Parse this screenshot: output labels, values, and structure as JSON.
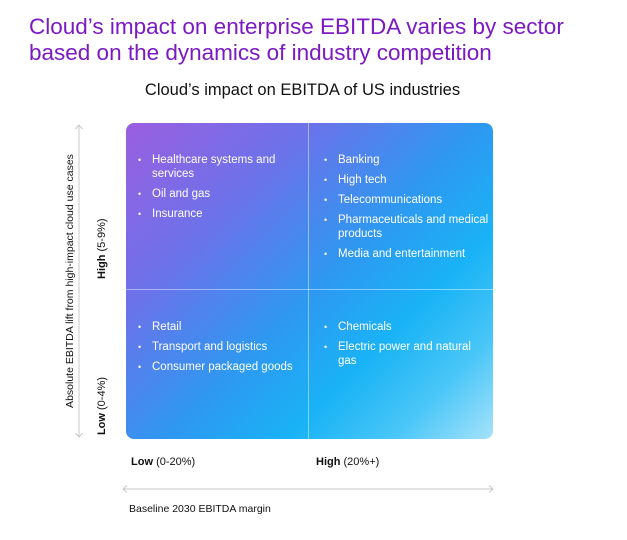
{
  "headline": {
    "line1": "Cloud’s impact on enterprise EBITDA varies by sector",
    "line2": "based on the dynamics of industry competition"
  },
  "chart_title": "Cloud’s impact on EBITDA of US industries",
  "y_axis": {
    "label": "Absolute EBITDA lift from high-impact cloud use cases",
    "high": {
      "level": "High",
      "range": "(5-9%)"
    },
    "low": {
      "level": "Low",
      "range": "(0-4%)"
    }
  },
  "x_axis": {
    "label": "Baseline 2030 EBITDA margin",
    "low": {
      "level": "Low",
      "range": "(0-20%)"
    },
    "high": {
      "level": "High",
      "range": "(20%+)"
    }
  },
  "quadrants": {
    "top_left": [
      "Healthcare systems and services",
      "Oil and gas",
      "Insurance"
    ],
    "top_right": [
      "Banking",
      "High tech",
      "Telecommunications",
      "Pharmaceuticals and medical products",
      "Media and entertainment"
    ],
    "bottom_left": [
      "Retail",
      "Transport and logistics",
      "Consumer packaged goods"
    ],
    "bottom_right": [
      "Chemicals",
      "Electric power and natural gas"
    ]
  },
  "colors": {
    "headline": "#7b19c4",
    "gradient_start": "#9b5ee0",
    "gradient_mid": "#19b3f6",
    "gradient_end": "#a6e2fb",
    "arrow": "#c8c8c8"
  }
}
